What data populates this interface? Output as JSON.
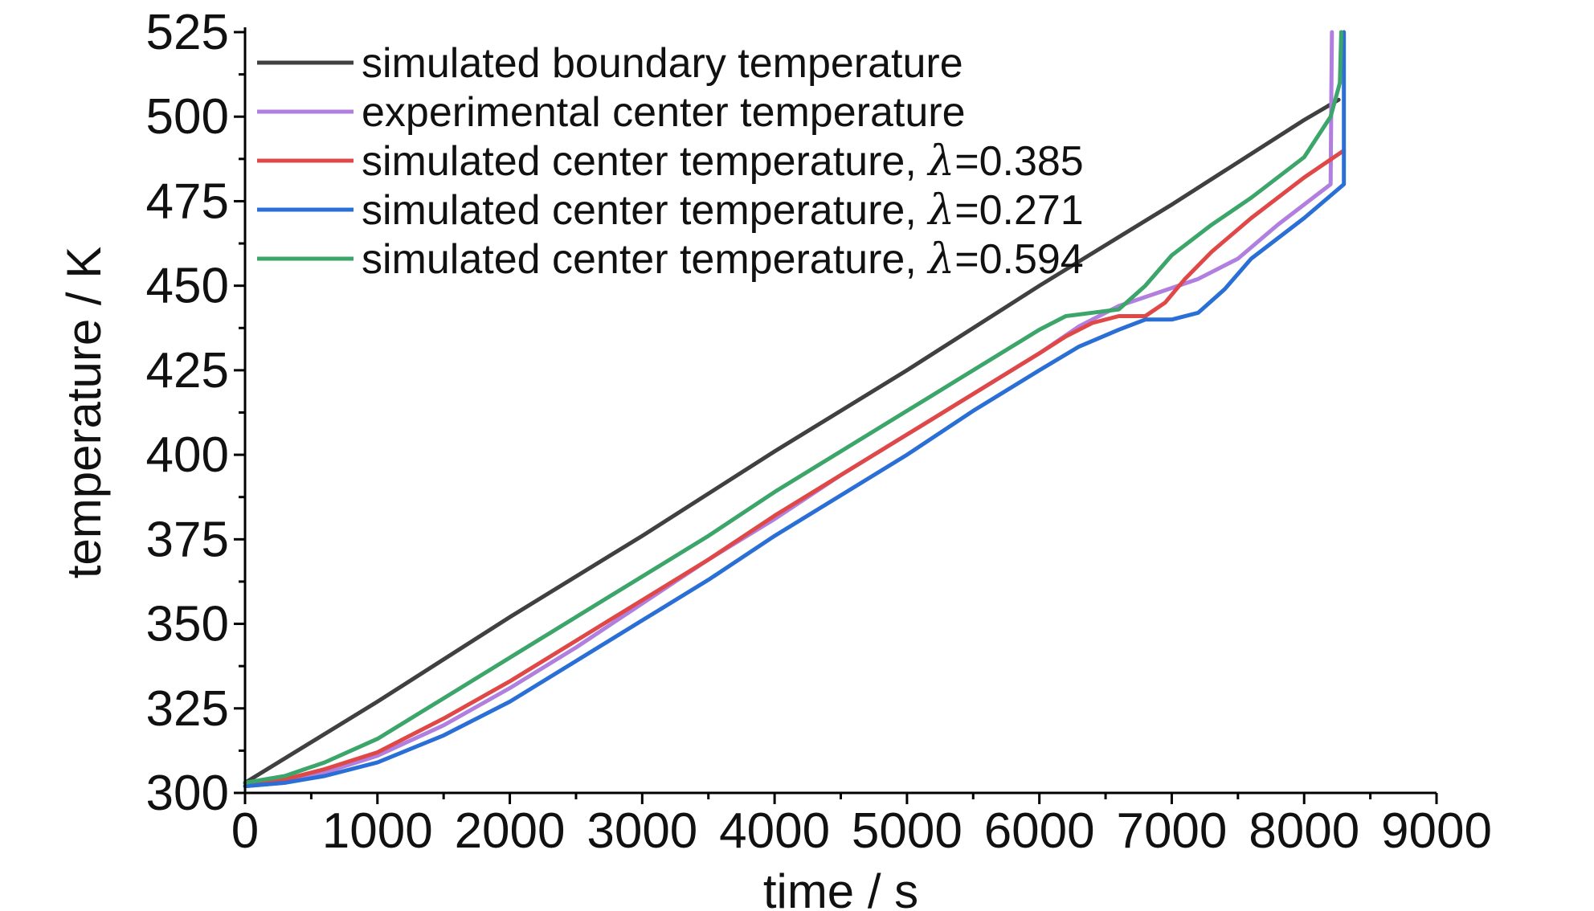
{
  "chart_data": {
    "type": "line",
    "xlabel": "time / s",
    "ylabel": "temperature / K",
    "xlim": [
      0,
      9000
    ],
    "ylim": [
      300,
      525
    ],
    "xticks": [
      "0",
      "1000",
      "2000",
      "3000",
      "4000",
      "5000",
      "6000",
      "7000",
      "8000",
      "9000"
    ],
    "yticks": [
      "300",
      "325",
      "350",
      "375",
      "400",
      "425",
      "450",
      "475",
      "500",
      "525"
    ],
    "legend_position": "top-left",
    "grid": false,
    "series": [
      {
        "name": "simulated boundary temperature",
        "legend_prefix": "simulated boundary temperature",
        "legend_lambda": "",
        "legend_value": "",
        "color": "#404040",
        "x": [
          0,
          1000,
          2000,
          3000,
          4000,
          5000,
          6000,
          7000,
          8000,
          8260
        ],
        "y": [
          303,
          327,
          352,
          376,
          401,
          425,
          450,
          474,
          499,
          505
        ]
      },
      {
        "name": "experimental center temperature",
        "legend_prefix": "experimental center temperature",
        "legend_lambda": "",
        "legend_value": "",
        "color": "#b07fe0",
        "x": [
          0,
          300,
          600,
          1000,
          1500,
          2000,
          2500,
          3000,
          3500,
          4000,
          4500,
          5000,
          5500,
          6000,
          6300,
          6600,
          6900,
          7200,
          7500,
          7800,
          8100,
          8200,
          8205,
          8210
        ],
        "y": [
          302,
          303,
          306,
          311,
          320,
          331,
          343,
          356,
          369,
          381,
          394,
          406,
          418,
          430,
          438,
          444,
          448,
          452,
          458,
          468,
          477,
          480,
          505,
          525
        ]
      },
      {
        "name": "simulated center temperature, λ=0.385",
        "legend_prefix": "simulated center temperature, ",
        "legend_lambda": "λ",
        "legend_value": "=0.385",
        "color": "#e04848",
        "x": [
          0,
          300,
          600,
          1000,
          1500,
          2000,
          2500,
          3000,
          3500,
          4000,
          4500,
          5000,
          5500,
          6000,
          6200,
          6400,
          6600,
          6800,
          6950,
          7100,
          7300,
          7600,
          8000,
          8300
        ],
        "y": [
          303,
          304,
          307,
          312,
          322,
          333,
          345,
          357,
          369,
          382,
          394,
          406,
          418,
          430,
          435,
          439,
          441,
          441,
          445,
          452,
          460,
          470,
          482,
          490
        ]
      },
      {
        "name": "simulated center temperature, λ=0.271",
        "legend_prefix": "simulated center temperature, ",
        "legend_lambda": "λ",
        "legend_value": "=0.271",
        "color": "#2a6fd6",
        "x": [
          0,
          300,
          600,
          1000,
          1500,
          2000,
          2500,
          3000,
          3500,
          4000,
          4500,
          5000,
          5500,
          6000,
          6300,
          6600,
          6800,
          7000,
          7200,
          7400,
          7600,
          8000,
          8300,
          8300
        ],
        "y": [
          302,
          303,
          305,
          309,
          317,
          327,
          339,
          351,
          363,
          376,
          388,
          400,
          413,
          425,
          432,
          437,
          440,
          440,
          442,
          449,
          458,
          470,
          480,
          525
        ]
      },
      {
        "name": "simulated center temperature, λ=0.594",
        "legend_prefix": "simulated center temperature, ",
        "legend_lambda": "λ",
        "legend_value": "=0.594",
        "color": "#3ca56a",
        "x": [
          0,
          300,
          600,
          1000,
          1500,
          2000,
          2500,
          3000,
          3500,
          4000,
          4500,
          5000,
          5500,
          6000,
          6200,
          6400,
          6600,
          6800,
          7000,
          7300,
          7600,
          8000,
          8200,
          8270,
          8280
        ],
        "y": [
          303,
          305,
          309,
          316,
          328,
          340,
          352,
          364,
          376,
          389,
          401,
          413,
          425,
          437,
          441,
          442,
          443,
          450,
          459,
          468,
          476,
          488,
          500,
          510,
          525
        ]
      }
    ]
  }
}
